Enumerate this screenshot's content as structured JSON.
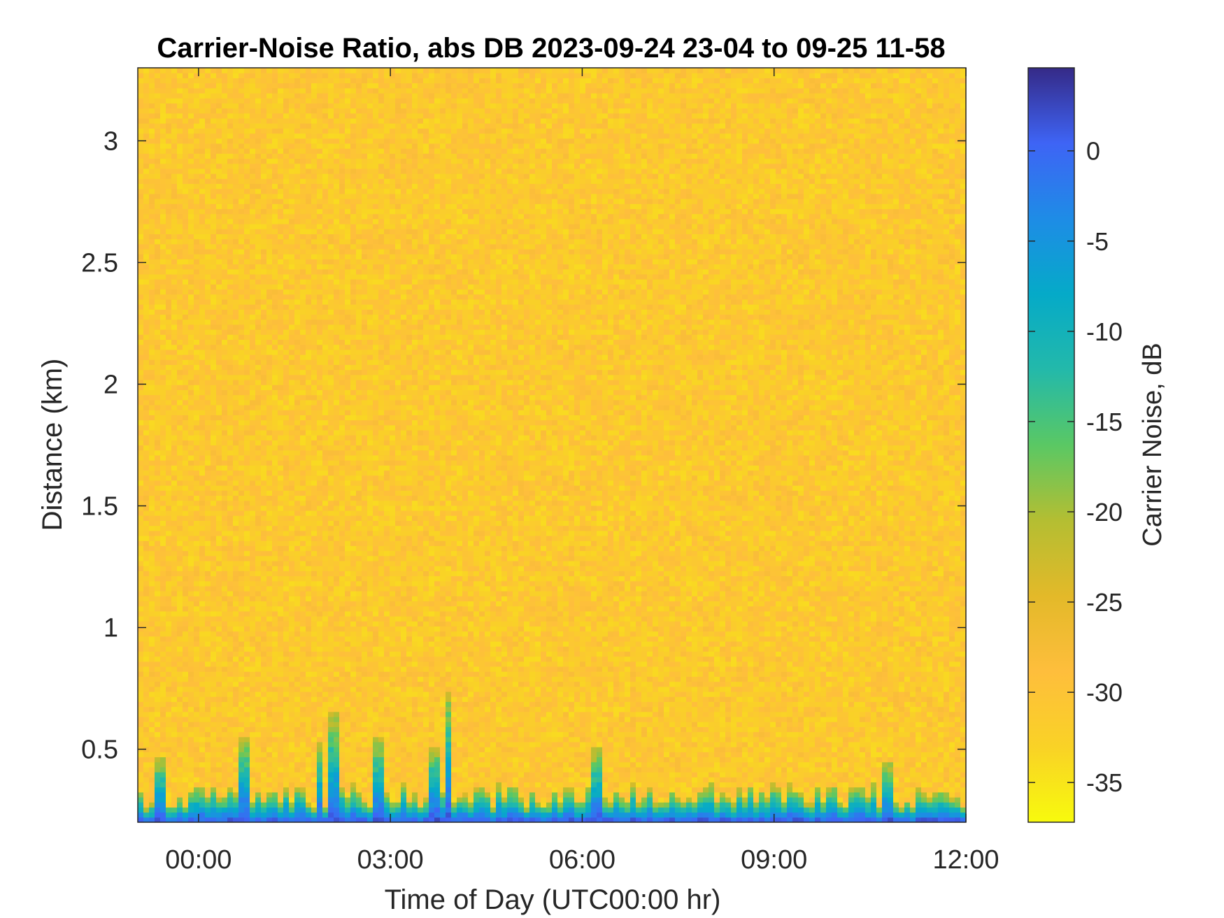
{
  "chart_data": {
    "type": "heatmap",
    "title": "Carrier-Noise Ratio, abs DB 2023-09-24 23-04 to 09-25 11-58",
    "xlabel": "Time of Day (UTC00:00 hr)",
    "ylabel": "Distance (km)",
    "x_ticks": [
      "00:00",
      "03:00",
      "06:00",
      "09:00",
      "12:00"
    ],
    "x_tick_hours": [
      0,
      3,
      6,
      9,
      12
    ],
    "xlim_hours": [
      -0.95,
      12.0
    ],
    "y_ticks": [
      0.5,
      1,
      1.5,
      2,
      2.5,
      3
    ],
    "y_tick_labels": [
      "0.5",
      "1",
      "1.5",
      "2",
      "2.5",
      "3"
    ],
    "ylim": [
      0.2,
      3.3
    ],
    "colorbar": {
      "label": "Carrier Noise, dB",
      "ticks": [
        0,
        -5,
        -10,
        -15,
        -20,
        -25,
        -30,
        -35
      ],
      "tick_labels": [
        "0",
        "-5",
        "-10",
        "-15",
        "-20",
        "-25",
        "-30",
        "-35"
      ],
      "range": [
        -37.2,
        4.6
      ],
      "direction": "reversed",
      "colormap": "parula"
    },
    "background_level_db": -31,
    "low_range_band": {
      "distance_km": [
        0.2,
        0.35
      ],
      "level_db": -2,
      "note_spikes": [
        {
          "time_hours": -0.6,
          "top_km": 0.47
        },
        {
          "time_hours": 0.7,
          "top_km": 0.56
        },
        {
          "time_hours": 1.9,
          "top_km": 0.53
        },
        {
          "time_hours": 2.1,
          "top_km": 0.65
        },
        {
          "time_hours": 2.8,
          "top_km": 0.55
        },
        {
          "time_hours": 3.7,
          "top_km": 0.52
        },
        {
          "time_hours": 3.9,
          "top_km": 0.74
        },
        {
          "time_hours": 6.25,
          "top_km": 0.5
        },
        {
          "time_hours": 10.8,
          "top_km": 0.45
        }
      ]
    }
  }
}
